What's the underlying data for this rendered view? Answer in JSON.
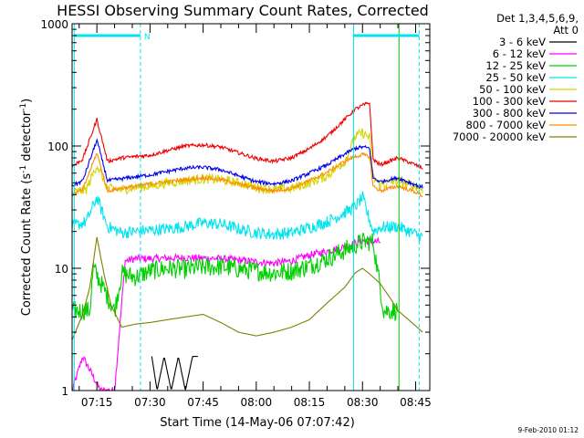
{
  "chart_data": {
    "type": "line",
    "title": "HESSI Observing Summary Count Rates, Corrected",
    "xlabel": "Start Time (14-May-06 07:07:42)",
    "ylabel": "Corrected Count Rate (s^-1 detector^-1)",
    "ylabel_parts": [
      "Corrected Count Rate (s",
      "-1",
      " detector",
      "-1",
      ")"
    ],
    "yscale": "log",
    "ylim": [
      1,
      1000
    ],
    "y_ticks": [
      "1",
      "10",
      "100",
      "1000"
    ],
    "xlim_minutes": [
      428,
      529
    ],
    "x_ticks": [
      "07:15",
      "07:30",
      "07:45",
      "08:00",
      "08:15",
      "08:30",
      "08:45"
    ],
    "x_tick_minutes": [
      435,
      450,
      465,
      480,
      495,
      510,
      525
    ],
    "legend_header": [
      "Det 1,3,4,5,6,9,",
      "Att 0"
    ],
    "legend_position": "right",
    "timestamp": "9-Feb-2010 01:12",
    "flag_label": "N",
    "markers": [
      {
        "kind": "solid",
        "minute": 428.6,
        "color": "#00e5ee"
      },
      {
        "kind": "dashed",
        "minute": 447.3,
        "color": "#00e5ee"
      },
      {
        "kind": "solid",
        "minute": 507.5,
        "color": "#00e5ee"
      },
      {
        "kind": "dashed",
        "minute": 526.0,
        "color": "#00e5ee"
      },
      {
        "kind": "solid",
        "minute": 520.3,
        "color": "#00c000"
      }
    ],
    "flag_bars": [
      {
        "from": 428.6,
        "to": 447.3,
        "y": 800
      },
      {
        "from": 507.5,
        "to": 526.0,
        "y": 800
      }
    ],
    "series": [
      {
        "name": "3 - 6 keV",
        "color": "#000000",
        "noise": 0.0,
        "x": [
          450.5,
          452.0,
          454.0,
          456.0,
          458.0,
          460.0,
          462.0,
          463.5
        ],
        "y": [
          1.9,
          1.0,
          1.9,
          1.0,
          1.9,
          1.0,
          1.9,
          1.9
        ]
      },
      {
        "name": "6 - 12 keV",
        "color": "#ff00ff",
        "noise": 0.03,
        "x": [
          428,
          431,
          436,
          440,
          443,
          446,
          450,
          460,
          470,
          480,
          485,
          490,
          495,
          500,
          505,
          510,
          513,
          515
        ],
        "y": [
          1.0,
          1.9,
          1.0,
          1.0,
          11.5,
          12.0,
          12.0,
          12.2,
          12.0,
          11.3,
          11.0,
          11.5,
          12.8,
          13.8,
          15.0,
          16.8,
          16.5,
          16.5
        ]
      },
      {
        "name": "12 - 25 keV",
        "color": "#00d000",
        "noise": 0.08,
        "x": [
          428,
          433,
          434,
          440,
          442,
          446,
          450,
          455,
          460,
          465,
          470,
          480,
          485,
          490,
          495,
          500,
          505,
          510,
          513,
          516,
          520
        ],
        "y": [
          4.5,
          4.5,
          10.0,
          4.5,
          9.0,
          8.5,
          9.5,
          10.0,
          9.8,
          10.2,
          10.3,
          9.5,
          9.2,
          9.5,
          10.5,
          12.0,
          14.0,
          16.5,
          16.5,
          4.5,
          4.5
        ]
      },
      {
        "name": "25 - 50 keV",
        "color": "#00e5ee",
        "noise": 0.05,
        "x": [
          428,
          432,
          435,
          438,
          442,
          446,
          450,
          455,
          460,
          465,
          470,
          475,
          480,
          485,
          490,
          495,
          500,
          505,
          508,
          510,
          513,
          515,
          520,
          525,
          527
        ],
        "y": [
          22.0,
          24.0,
          38.0,
          22.0,
          19.5,
          20.0,
          20.5,
          21.0,
          22.0,
          23.5,
          23.0,
          21.0,
          19.5,
          19.0,
          19.5,
          21.5,
          24.0,
          28.5,
          32.0,
          38.0,
          20.0,
          21.5,
          22.0,
          19.0,
          18.0
        ]
      },
      {
        "name": "50 - 100 keV",
        "color": "#d4d400",
        "noise": 0.04,
        "x": [
          428,
          432,
          435,
          438,
          442,
          446,
          450,
          455,
          460,
          465,
          470,
          475,
          480,
          485,
          490,
          495,
          500,
          505,
          508,
          510,
          512,
          513,
          515,
          520,
          525,
          527
        ],
        "y": [
          41.0,
          44.0,
          70.0,
          45.0,
          44.0,
          46.0,
          47.0,
          50.0,
          52.0,
          54.0,
          53.0,
          50.0,
          46.0,
          44.0,
          45.0,
          50.0,
          57.0,
          75.0,
          120.0,
          128.0,
          118.0,
          55.0,
          48.0,
          52.0,
          47.0,
          44.0
        ]
      },
      {
        "name": "100 - 300 keV",
        "color": "#ee0000",
        "noise": 0.015,
        "x": [
          428,
          431,
          435,
          438,
          442,
          446,
          450,
          455,
          460,
          465,
          470,
          475,
          480,
          485,
          490,
          495,
          500,
          505,
          508,
          510,
          512,
          513,
          515,
          520,
          525,
          527
        ],
        "y": [
          68.0,
          78.0,
          165.0,
          75.0,
          80.0,
          82.0,
          84.0,
          92.0,
          100.0,
          102.0,
          98.0,
          88.0,
          79.0,
          75.0,
          80.0,
          95.0,
          120.0,
          165.0,
          200.0,
          215.0,
          225.0,
          78.0,
          70.0,
          80.0,
          70.0,
          66.0
        ]
      },
      {
        "name": "300 - 800 keV",
        "color": "#0000ee",
        "noise": 0.015,
        "x": [
          428,
          431,
          435,
          438,
          442,
          446,
          450,
          455,
          460,
          465,
          470,
          475,
          480,
          485,
          490,
          495,
          500,
          505,
          508,
          510,
          512,
          513,
          515,
          520,
          525,
          527
        ],
        "y": [
          47.0,
          52.0,
          112.0,
          52.0,
          54.0,
          56.0,
          58.0,
          62.0,
          66.0,
          67.0,
          64.0,
          57.0,
          51.0,
          49.0,
          52.0,
          60.0,
          70.0,
          86.0,
          96.0,
          98.0,
          96.0,
          55.0,
          51.0,
          55.0,
          48.0,
          46.0
        ]
      },
      {
        "name": "800 - 7000 keV",
        "color": "#ff8c00",
        "noise": 0.015,
        "x": [
          428,
          431,
          435,
          438,
          442,
          446,
          450,
          455,
          460,
          465,
          470,
          475,
          480,
          485,
          490,
          495,
          500,
          505,
          508,
          510,
          512,
          513,
          515,
          520,
          525,
          527
        ],
        "y": [
          40.0,
          44.0,
          88.0,
          43.0,
          45.0,
          47.0,
          49.0,
          51.0,
          53.0,
          55.0,
          53.0,
          49.0,
          45.0,
          43.0,
          45.0,
          52.0,
          61.0,
          75.0,
          82.0,
          85.0,
          82.0,
          47.0,
          43.0,
          47.0,
          42.0,
          39.0
        ]
      },
      {
        "name": "7000 - 20000 keV",
        "color": "#808000",
        "noise": 0.0,
        "x": [
          428,
          431,
          433,
          435,
          437,
          439,
          442,
          446,
          450,
          455,
          460,
          465,
          470,
          475,
          480,
          485,
          490,
          495,
          500,
          505,
          508,
          510,
          512,
          515,
          518,
          520,
          523,
          527
        ],
        "y": [
          2.6,
          4.2,
          7.0,
          18.0,
          9.0,
          5.0,
          3.3,
          3.5,
          3.6,
          3.8,
          4.0,
          4.2,
          3.6,
          3.0,
          2.8,
          3.0,
          3.3,
          3.8,
          5.2,
          7.0,
          9.2,
          10.0,
          9.0,
          7.5,
          5.6,
          4.5,
          3.8,
          3.0
        ]
      }
    ]
  }
}
